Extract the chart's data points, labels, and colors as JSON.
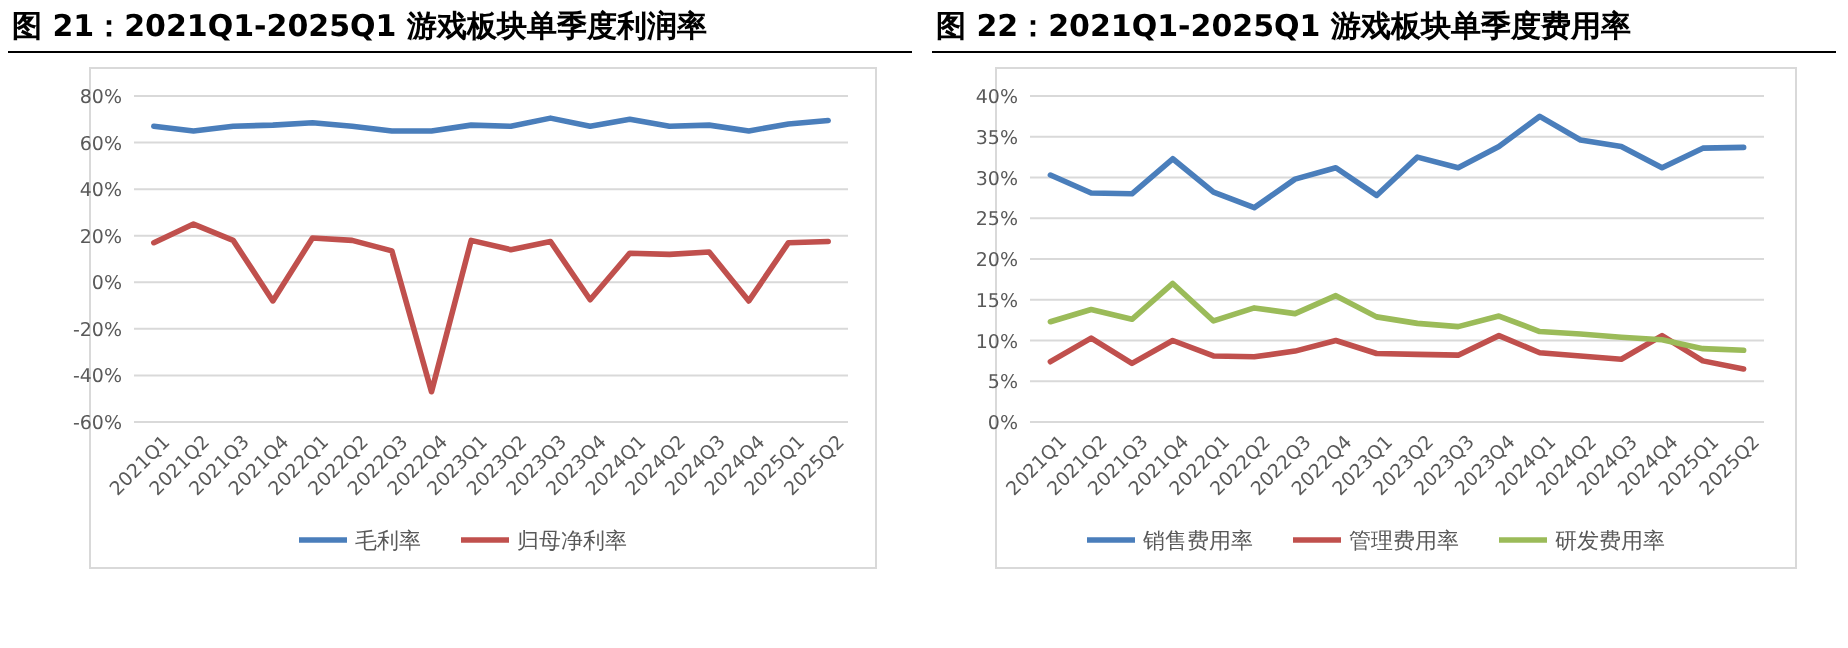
{
  "chart_data": [
    {
      "type": "line",
      "title": "图 21：2021Q1-2025Q1 游戏板块单季度利润率",
      "categories": [
        "2021Q1",
        "2021Q2",
        "2021Q3",
        "2021Q4",
        "2022Q1",
        "2022Q2",
        "2022Q3",
        "2022Q4",
        "2023Q1",
        "2023Q2",
        "2023Q3",
        "2023Q4",
        "2024Q1",
        "2024Q2",
        "2024Q3",
        "2024Q4",
        "2025Q1",
        "2025Q2"
      ],
      "series": [
        {
          "name": "毛利率",
          "color": "#4a7ebb",
          "values": [
            67,
            65,
            67,
            67.5,
            68.5,
            67,
            65,
            65,
            67.5,
            67,
            70.5,
            67,
            70,
            67,
            67.5,
            65,
            68,
            69.5
          ]
        },
        {
          "name": "归母净利率",
          "color": "#c0504d",
          "values": [
            17,
            25,
            18,
            -8,
            19,
            18,
            13.5,
            -47,
            18,
            14,
            17.5,
            -7.5,
            12.5,
            12,
            13,
            -8,
            17,
            17.5
          ]
        }
      ],
      "ylim": [
        -60,
        80
      ],
      "yticks": [
        {
          "value": -60,
          "label": "-60%"
        },
        {
          "value": -40,
          "label": "-40%"
        },
        {
          "value": -20,
          "label": "-20%"
        },
        {
          "value": 0,
          "label": "0%"
        },
        {
          "value": 20,
          "label": "20%"
        },
        {
          "value": 40,
          "label": "40%"
        },
        {
          "value": 60,
          "label": "60%"
        },
        {
          "value": 80,
          "label": "80%"
        }
      ],
      "grid": "y",
      "legend": "bottom"
    },
    {
      "type": "line",
      "title": "图 22：2021Q1-2025Q1 游戏板块单季度费用率",
      "categories": [
        "2021Q1",
        "2021Q2",
        "2021Q3",
        "2021Q4",
        "2022Q1",
        "2022Q2",
        "2022Q3",
        "2022Q4",
        "2023Q1",
        "2023Q2",
        "2023Q3",
        "2023Q4",
        "2024Q1",
        "2024Q2",
        "2024Q3",
        "2024Q4",
        "2025Q1",
        "2025Q2"
      ],
      "series": [
        {
          "name": "销售费用率",
          "color": "#4a7ebb",
          "values": [
            30.3,
            28.1,
            28,
            32.3,
            28.2,
            26.3,
            29.8,
            31.2,
            27.8,
            32.5,
            31.2,
            33.8,
            37.5,
            34.6,
            33.8,
            31.2,
            33.6,
            33.7
          ]
        },
        {
          "name": "管理费用率",
          "color": "#c0504d",
          "values": [
            7.4,
            10.3,
            7.2,
            10,
            8.1,
            8,
            8.7,
            10,
            8.4,
            8.3,
            8.2,
            10.6,
            8.5,
            8.1,
            7.7,
            10.6,
            7.5,
            6.5
          ]
        },
        {
          "name": "研发费用率",
          "color": "#9bbb59",
          "values": [
            12.3,
            13.8,
            12.6,
            17,
            12.4,
            14,
            13.3,
            15.5,
            12.9,
            12.1,
            11.7,
            13,
            11.1,
            10.8,
            10.4,
            10.1,
            9,
            8.8
          ]
        }
      ],
      "ylim": [
        0,
        40
      ],
      "yticks": [
        {
          "value": 0,
          "label": "0%"
        },
        {
          "value": 5,
          "label": "5%"
        },
        {
          "value": 10,
          "label": "10%"
        },
        {
          "value": 15,
          "label": "15%"
        },
        {
          "value": 20,
          "label": "20%"
        },
        {
          "value": 25,
          "label": "25%"
        },
        {
          "value": 30,
          "label": "30%"
        },
        {
          "value": 35,
          "label": "35%"
        },
        {
          "value": 40,
          "label": "40%"
        }
      ],
      "grid": "y",
      "legend": "bottom"
    }
  ]
}
